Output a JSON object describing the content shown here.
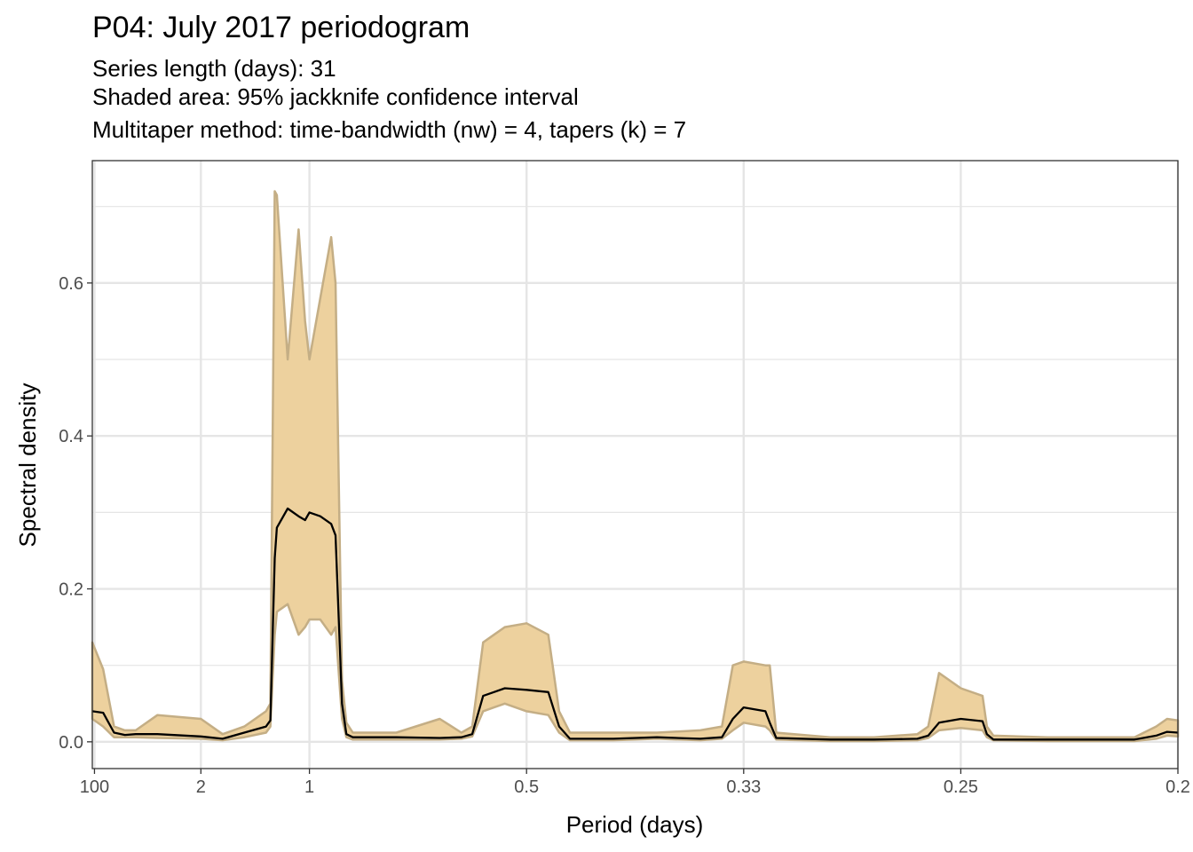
{
  "chart_data": {
    "type": "line",
    "title": "P04: July 2017 periodogram",
    "subtitles": [
      "Series length (days): 31",
      "Shaded area: 95% jackknife confidence interval",
      "Multitaper method: time-bandwidth (nw) = 4, tapers (k) = 7"
    ],
    "xlabel": "Period (days)",
    "ylabel": "Spectral density",
    "x_scale": "reciprocal (frequency = 1/period, cycles per day)",
    "x_ticks": [
      {
        "label": "100",
        "frequency": 0.01
      },
      {
        "label": "2",
        "frequency": 0.5
      },
      {
        "label": "1",
        "frequency": 1.0
      },
      {
        "label": "0.5",
        "frequency": 2.0
      },
      {
        "label": "0.33",
        "frequency": 3.0
      },
      {
        "label": "0.25",
        "frequency": 4.0
      },
      {
        "label": "0.2",
        "frequency": 5.0
      }
    ],
    "y_ticks": [
      "0.0",
      "0.2",
      "0.4",
      "0.6"
    ],
    "ylim": [
      -0.035,
      0.76
    ],
    "grid": true,
    "colors": {
      "band_fill": "#EDD19E",
      "band_stroke": "#C4AE85",
      "line": "#000000",
      "grid": "#E5E5E5",
      "frame": "#333333"
    },
    "series": [
      {
        "type": "ribbon+line",
        "x_frequency": [
          0.0,
          0.05,
          0.1,
          0.15,
          0.2,
          0.3,
          0.5,
          0.6,
          0.7,
          0.8,
          0.82,
          0.84,
          0.85,
          0.9,
          0.95,
          0.98,
          1.0,
          1.05,
          1.1,
          1.12,
          1.15,
          1.17,
          1.2,
          1.4,
          1.6,
          1.7,
          1.75,
          1.8,
          1.85,
          1.9,
          2.0,
          2.1,
          2.15,
          2.2,
          2.4,
          2.6,
          2.8,
          2.9,
          2.95,
          3.0,
          3.1,
          3.12,
          3.15,
          3.4,
          3.6,
          3.8,
          3.85,
          3.9,
          4.0,
          4.1,
          4.12,
          4.15,
          4.4,
          4.6,
          4.8,
          4.9,
          4.95,
          5.0
        ],
        "mean": [
          0.04,
          0.038,
          0.012,
          0.009,
          0.01,
          0.01,
          0.007,
          0.004,
          0.012,
          0.02,
          0.028,
          0.24,
          0.28,
          0.305,
          0.295,
          0.29,
          0.3,
          0.295,
          0.285,
          0.27,
          0.05,
          0.01,
          0.006,
          0.006,
          0.005,
          0.006,
          0.01,
          0.06,
          0.065,
          0.07,
          0.068,
          0.065,
          0.02,
          0.004,
          0.004,
          0.006,
          0.004,
          0.006,
          0.03,
          0.045,
          0.04,
          0.025,
          0.005,
          0.003,
          0.003,
          0.004,
          0.008,
          0.025,
          0.03,
          0.027,
          0.01,
          0.003,
          0.003,
          0.003,
          0.003,
          0.008,
          0.013,
          0.012
        ],
        "lower": [
          0.03,
          0.02,
          0.006,
          0.006,
          0.006,
          0.005,
          0.004,
          0.002,
          0.006,
          0.012,
          0.02,
          0.14,
          0.17,
          0.18,
          0.14,
          0.15,
          0.16,
          0.16,
          0.14,
          0.15,
          0.03,
          0.006,
          0.003,
          0.003,
          0.003,
          0.004,
          0.007,
          0.04,
          0.045,
          0.05,
          0.04,
          0.035,
          0.012,
          0.002,
          0.002,
          0.004,
          0.002,
          0.004,
          0.015,
          0.025,
          0.02,
          0.015,
          0.003,
          0.001,
          0.001,
          0.002,
          0.005,
          0.015,
          0.018,
          0.015,
          0.006,
          0.002,
          0.001,
          0.001,
          0.001,
          0.004,
          0.008,
          0.007
        ],
        "upper": [
          0.13,
          0.095,
          0.02,
          0.015,
          0.015,
          0.035,
          0.03,
          0.01,
          0.02,
          0.04,
          0.05,
          0.72,
          0.715,
          0.5,
          0.67,
          0.55,
          0.5,
          0.58,
          0.66,
          0.6,
          0.08,
          0.025,
          0.012,
          0.012,
          0.03,
          0.012,
          0.02,
          0.13,
          0.14,
          0.15,
          0.155,
          0.14,
          0.04,
          0.012,
          0.012,
          0.012,
          0.015,
          0.02,
          0.1,
          0.105,
          0.1,
          0.1,
          0.012,
          0.006,
          0.006,
          0.01,
          0.02,
          0.09,
          0.07,
          0.06,
          0.02,
          0.008,
          0.006,
          0.006,
          0.006,
          0.02,
          0.03,
          0.028
        ]
      }
    ]
  }
}
